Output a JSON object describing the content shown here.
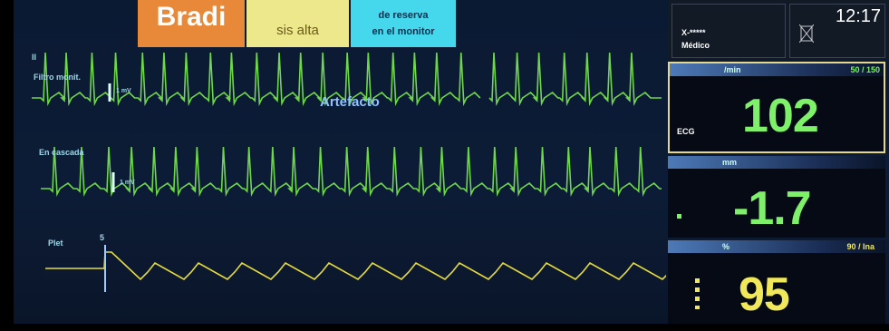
{
  "alarm_banners": [
    {
      "text": "Bradi"
    },
    {
      "text": "sis alta"
    },
    {
      "lines": [
        "de reserva",
        "en el monitor"
      ]
    }
  ],
  "waveforms": [
    {
      "lead": "II",
      "filter": "Filtro monit.",
      "scale": "1 mV",
      "annotation": "Artefacto"
    },
    {
      "label": "En cascada",
      "scale": "1 mV"
    },
    {
      "label": "Plet",
      "scale": "5"
    }
  ],
  "header": {
    "patient": "X-*****",
    "role": "Médico",
    "time": "12:17"
  },
  "parameters": [
    {
      "unit": "/min",
      "limits": "50 / 150",
      "label": "ECG",
      "value": "102"
    },
    {
      "unit": "mm",
      "value": "-1.7"
    },
    {
      "unit": "%",
      "limits": "90 / Ina",
      "value": "95"
    }
  ]
}
